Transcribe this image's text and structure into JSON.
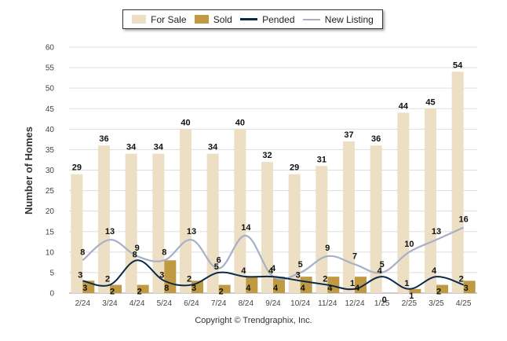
{
  "legend": {
    "for_sale": "For Sale",
    "sold": "Sold",
    "pended": "Pended",
    "new_listing": "New Listing"
  },
  "footer": "Copyright © Trendgraphix, Inc.",
  "colors": {
    "for_sale": "#ecdfc3",
    "sold": "#bf9a42",
    "pended": "#0b2a4a",
    "new_listing": "#a8b0c6",
    "grid": "#dddddd"
  },
  "chart_data": {
    "type": "bar",
    "title": "",
    "xlabel": "",
    "ylabel": "Number of Homes",
    "ylim": [
      0,
      60
    ],
    "yticks": [
      0,
      5,
      10,
      15,
      20,
      25,
      30,
      35,
      40,
      45,
      50,
      55,
      60
    ],
    "grid": true,
    "legend_position": "top",
    "categories": [
      "2/24",
      "3/24",
      "4/24",
      "5/24",
      "6/24",
      "7/24",
      "8/24",
      "9/24",
      "10/24",
      "11/24",
      "12/24",
      "1/25",
      "2/25",
      "3/25",
      "4/25"
    ],
    "series": [
      {
        "name": "For Sale",
        "kind": "bar",
        "values": [
          29,
          36,
          34,
          34,
          40,
          34,
          40,
          32,
          29,
          31,
          37,
          36,
          44,
          45,
          54
        ]
      },
      {
        "name": "Sold",
        "kind": "bar",
        "values": [
          3,
          2,
          2,
          8,
          3,
          2,
          4,
          4,
          4,
          4,
          4,
          0,
          1,
          2,
          3
        ]
      },
      {
        "name": "Pended",
        "kind": "line",
        "values": [
          3,
          2,
          8,
          3,
          2,
          5,
          4,
          4,
          3,
          2,
          1,
          4,
          1,
          4,
          2
        ]
      },
      {
        "name": "New Listing",
        "kind": "line",
        "values": [
          8,
          13,
          9,
          8,
          13,
          6,
          14,
          4,
          5,
          9,
          7,
          5,
          10,
          13,
          16
        ]
      }
    ]
  }
}
